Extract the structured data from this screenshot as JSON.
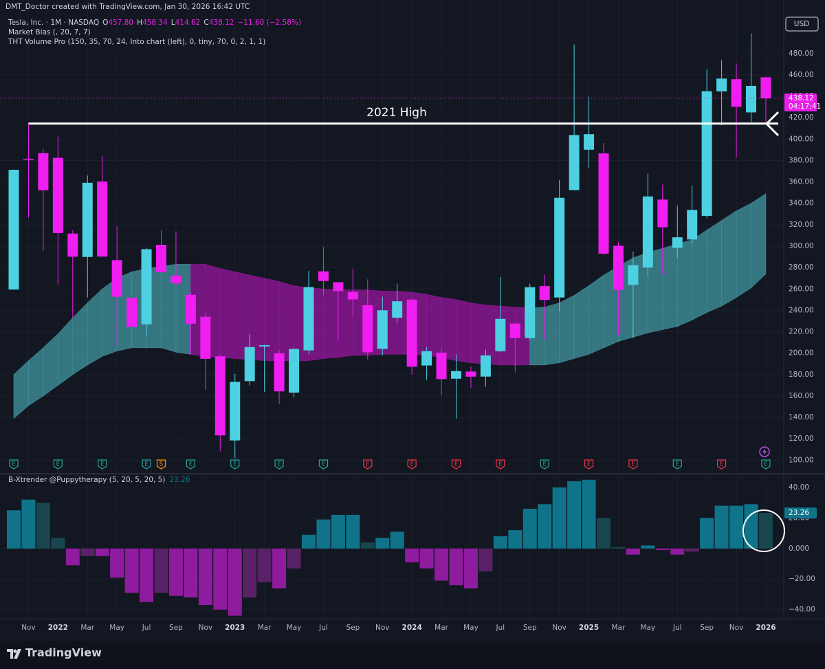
{
  "header": {
    "credit": "DMT_Doctor created with TradingView.com, Jan 30, 2026 16:42 UTC",
    "symbol": "Tesla, Inc. · 1M · NASDAQ",
    "ohlc": [
      {
        "key": "O",
        "value": "457.80"
      },
      {
        "key": "H",
        "value": "458.34"
      },
      {
        "key": "L",
        "value": "414.62"
      },
      {
        "key": "C",
        "value": "438.12"
      }
    ],
    "change": "−11.60 (−2.58%)",
    "indicators": [
      "Market Bias (, 20, 7, 7)",
      "THT Volume Pro (150, 35, 70, 24, Into chart (left), 0, tiny, 70, 0, 2, 1, 1)"
    ],
    "currency": "USD",
    "countdown": "04:17:41"
  },
  "footer": {
    "brand": "TradingView"
  },
  "chart_data": [
    {
      "type": "candlestick",
      "categories": [
        null,
        "Nov",
        null,
        "2022",
        null,
        "Mar",
        null,
        "May",
        null,
        "Jul",
        null,
        "Sep",
        null,
        "Nov",
        null,
        "2023",
        null,
        "Mar",
        null,
        "May",
        null,
        "Jul",
        null,
        "Sep",
        null,
        "Nov",
        null,
        "2024",
        null,
        "Mar",
        null,
        "May",
        null,
        "Jul",
        null,
        "Sep",
        null,
        "Nov",
        null,
        "2025",
        null,
        "Mar",
        null,
        "May",
        null,
        "Jul",
        null,
        "Sep",
        null,
        "Nov",
        null,
        "2026"
      ],
      "open": [
        259.47,
        381.67,
        386.9,
        382.58,
        311.74,
        289.89,
        360.38,
        286.92,
        251.72,
        227,
        301.28,
        272.58,
        254.5,
        234.05,
        197.08,
        118.47,
        173.89,
        206.21,
        199.91,
        163.17,
        202.59,
        276.49,
        266.26,
        257.26,
        244.81,
        204.04,
        233.14,
        250.08,
        188.5,
        200.52,
        176.17,
        182.85,
        178.13,
        201.83,
        227.69,
        214.14,
        262.67,
        252.04,
        352.38,
        390.1,
        386.68,
        300.34,
        263.8,
        280.01,
        343.5,
        298.46,
        306.21,
        328.23,
        444.6,
        456,
        425,
        457.8
      ],
      "high": [
        371.74,
        414.5,
        390.95,
        402.67,
        315,
        366,
        384.29,
        318.5,
        264.21,
        298.32,
        314.67,
        313.8,
        257.5,
        237.4,
        198.92,
        180.68,
        217.65,
        207.79,
        202.69,
        204.48,
        276.99,
        299.29,
        266.47,
        278.98,
        268.94,
        252.75,
        265.13,
        251.25,
        205.6,
        204.52,
        198.87,
        187.59,
        203.2,
        271,
        228.22,
        264.86,
        273.54,
        361.93,
        488.54,
        439.74,
        396.59,
        303.94,
        294.86,
        367.71,
        357.54,
        338,
        356.37,
        465,
        474,
        470.75,
        498.83,
        458.34
      ],
      "low": [
        259.18,
        326.67,
        295.37,
        264,
        233.33,
        252.01,
        290.14,
        206.86,
        208.69,
        216.17,
        271.81,
        262.47,
        198.59,
        166.19,
        108.24,
        101.81,
        169.93,
        163.91,
        152.37,
        158.83,
        199.37,
        254.12,
        212.36,
        234.58,
        194.07,
        197.85,
        228.2,
        180.06,
        175.01,
        160.51,
        138.8,
        167.41,
        168.47,
        200.85,
        182,
        212.11,
        212.8,
        238.88,
        352,
        373.04,
        292,
        217.02,
        214.25,
        271,
        273.21,
        288.77,
        302.07,
        326.5,
        413,
        382.78,
        416,
        414.62
      ],
      "close": [
        371.33,
        381.59,
        352.26,
        312.24,
        290.14,
        359.2,
        290.25,
        252.75,
        224.47,
        297.15,
        275.61,
        265.25,
        227.54,
        194.7,
        123.18,
        173.22,
        205.71,
        207.46,
        164.31,
        203.93,
        261.77,
        267.43,
        258.08,
        250.22,
        200.84,
        240.08,
        248.48,
        187.29,
        201.88,
        175.79,
        183.28,
        178.08,
        197.88,
        232.07,
        214.11,
        261.63,
        249.85,
        345.16,
        403.84,
        404.6,
        292.98,
        259.16,
        282.16,
        346.46,
        317.66,
        308.27,
        333.87,
        444.72,
        456.56,
        430.17,
        449.72,
        438.12
      ],
      "up_color": "#4dd0e1",
      "down_color": "#f01ef0",
      "band": {
        "upper": [
          180,
          193,
          205,
          218,
          233,
          247,
          260,
          270,
          276,
          279,
          281,
          283,
          283,
          283,
          279,
          276,
          273,
          270,
          267,
          263,
          261,
          260,
          259,
          259,
          259,
          258,
          258,
          257,
          255,
          252,
          250,
          247,
          245,
          244,
          243,
          242,
          243,
          247,
          254,
          263,
          273,
          281,
          289,
          294,
          298,
          302,
          306,
          315,
          324,
          333,
          340,
          349
        ],
        "lower": [
          139,
          151,
          160,
          170,
          180,
          189,
          197,
          202,
          205,
          205,
          205,
          201,
          199,
          197,
          196,
          195,
          194,
          193,
          193,
          193,
          193,
          195,
          196,
          198,
          198,
          199,
          199,
          199,
          198,
          196,
          193,
          191,
          190,
          189,
          189,
          189,
          189,
          191,
          195,
          199,
          205,
          211,
          215,
          219,
          222,
          225,
          231,
          238,
          244,
          252,
          261,
          274
        ],
        "colors": [
          "#3f8f9a",
          "#3f8f9a",
          "#3f8f9a",
          "#3f8f9a",
          "#3f8f9a",
          "#3f8f9a",
          "#3f8f9a",
          "#3f8f9a",
          "#3f8f9a",
          "#3f8f9a",
          "#3f8f9a",
          "#3f8f9a",
          "#8e1796",
          "#8e1796",
          "#8e1796",
          "#8e1796",
          "#8e1796",
          "#8e1796",
          "#8e1796",
          "#8e1796",
          "#8e1796",
          "#8e1796",
          "#8e1796",
          "#8e1796",
          "#8e1796",
          "#8e1796",
          "#8e1796",
          "#8e1796",
          "#8e1796",
          "#8e1796",
          "#8e1796",
          "#8e1796",
          "#8e1796",
          "#8e1796",
          "#8e1796",
          "#3f8f9a",
          "#3f8f9a",
          "#3f8f9a",
          "#3f8f9a",
          "#3f8f9a",
          "#3f8f9a",
          "#3f8f9a",
          "#3f8f9a",
          "#3f8f9a",
          "#3f8f9a",
          "#3f8f9a",
          "#3f8f9a",
          "#3f8f9a",
          "#3f8f9a",
          "#3f8f9a",
          "#3f8f9a",
          "#3f8f9a"
        ]
      },
      "events": [
        {
          "label": "E",
          "color": "#26a69a"
        },
        null,
        null,
        {
          "label": "E",
          "color": "#26a69a"
        },
        null,
        null,
        {
          "label": "E",
          "color": "#26a69a"
        },
        null,
        null,
        {
          "label": "E",
          "color": "#26a69a"
        },
        {
          "label": "S",
          "color": "#ff9800"
        },
        null,
        {
          "label": "E",
          "color": "#26a69a"
        },
        null,
        null,
        {
          "label": "E",
          "color": "#26a69a"
        },
        null,
        null,
        {
          "label": "E",
          "color": "#26a69a"
        },
        null,
        null,
        {
          "label": "E",
          "color": "#26a69a"
        },
        null,
        null,
        {
          "label": "E",
          "color": "#f23645"
        },
        null,
        null,
        {
          "label": "E",
          "color": "#f23645"
        },
        null,
        null,
        {
          "label": "E",
          "color": "#f23645"
        },
        null,
        null,
        {
          "label": "E",
          "color": "#f23645"
        },
        null,
        null,
        {
          "label": "E",
          "color": "#26a69a"
        },
        null,
        null,
        {
          "label": "E",
          "color": "#f23645"
        },
        null,
        null,
        {
          "label": "E",
          "color": "#f23645"
        },
        null,
        null,
        {
          "label": "E",
          "color": "#26a69a"
        },
        null,
        null,
        {
          "label": "E",
          "color": "#f23645"
        },
        null,
        null,
        {
          "label": "E",
          "color": "#26a69a"
        }
      ],
      "hline": {
        "value": 414.5,
        "label": "2021 High",
        "color": "#ffffff"
      },
      "last_price": {
        "value": 438.12,
        "label": "438.12",
        "color": "#e91ee9"
      },
      "ylim": [
        88,
        530
      ],
      "yticks": [
        {
          "value": 100,
          "label": "100.00"
        },
        {
          "value": 120,
          "label": "120.00"
        },
        {
          "value": 140,
          "label": "140.00"
        },
        {
          "value": 160,
          "label": "160.00"
        },
        {
          "value": 180,
          "label": "180.00"
        },
        {
          "value": 200,
          "label": "200.00"
        },
        {
          "value": 220,
          "label": "220.00"
        },
        {
          "value": 240,
          "label": "240.00"
        },
        {
          "value": 260,
          "label": "260.00"
        },
        {
          "value": 280,
          "label": "280.00"
        },
        {
          "value": 300,
          "label": "300.00"
        },
        {
          "value": 320,
          "label": "320.00"
        },
        {
          "value": 340,
          "label": "340.00"
        },
        {
          "value": 360,
          "label": "360.00"
        },
        {
          "value": 380,
          "label": "380.00"
        },
        {
          "value": 400,
          "label": "400.00"
        },
        {
          "value": 420,
          "label": "420.00"
        },
        {
          "value": 440,
          "label": "440.00"
        },
        {
          "value": 460,
          "label": "460.00"
        },
        {
          "value": 480,
          "label": "480.00"
        }
      ],
      "grid": true
    },
    {
      "type": "histogram",
      "title": "B-Xtrender @Puppytherapy (5, 20, 5, 20, 5)",
      "current": 23.26,
      "values": [
        25,
        32,
        30,
        7,
        -11,
        -5,
        -5,
        -19,
        -29,
        -35,
        -29,
        -31,
        -32,
        -37,
        -40,
        -44,
        -32,
        -22,
        -26,
        -13,
        9,
        19,
        22,
        22,
        4,
        7,
        11,
        -9,
        -13,
        -21,
        -24,
        -26,
        -15,
        8,
        12,
        26,
        29,
        40,
        44,
        45,
        20,
        1,
        -4,
        2,
        -1,
        -4,
        -2,
        20,
        28,
        28,
        29,
        23.26
      ],
      "colors": {
        "pos_rising": "#0f7489",
        "pos_falling": "#17464f",
        "neg_falling": "#8f1c9f",
        "neg_rising": "#5a2266"
      },
      "ylim": [
        -46,
        48.5
      ],
      "yticks": [
        {
          "value": 40,
          "label": "40.00"
        },
        {
          "value": 20,
          "label": "20.00"
        },
        {
          "value": 0,
          "label": "0.000"
        },
        {
          "value": -20,
          "label": "−20.00"
        },
        {
          "value": -40,
          "label": "−40.00"
        }
      ],
      "grid": true
    }
  ]
}
